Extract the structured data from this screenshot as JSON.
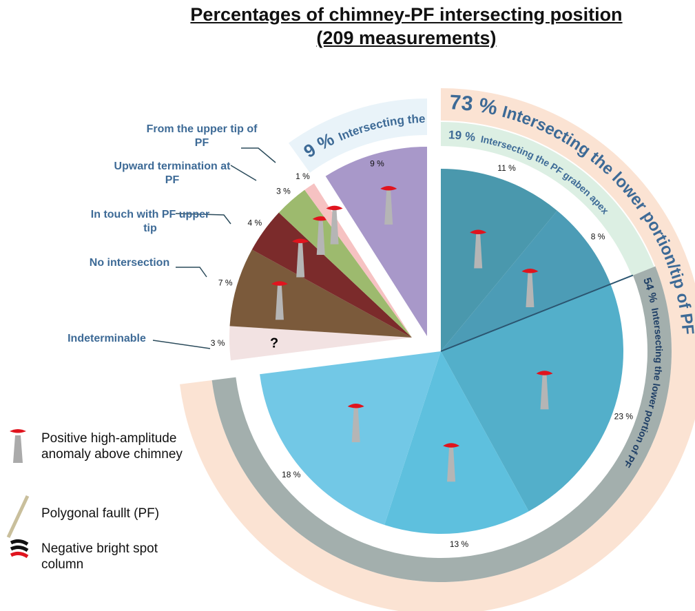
{
  "chart_data": {
    "type": "pie",
    "title": "Percentages of chimney-PF intersecting position",
    "subtitle": "(209 measurements)",
    "categories": [
      null,
      null,
      null,
      null,
      null,
      "Indeterminable",
      "No intersection",
      "In touch with PF upper tip",
      "Upward termination at PF",
      "From the upper tip of PF",
      null
    ],
    "values": [
      11,
      8,
      23,
      13,
      18,
      3,
      7,
      4,
      3,
      1,
      9
    ],
    "value_labels": [
      "11 %",
      "8 %",
      "23 %",
      "13 %",
      "18 %",
      "3 %",
      "7 %",
      "4 %",
      "3 %",
      "1 %",
      "9 %"
    ],
    "colors": [
      "#4a98ad",
      "#4c9cb6",
      "#53afca",
      "#5ec0de",
      "#72c8e6",
      "#f2e2e2",
      "#7b5a3b",
      "#7b2b2b",
      "#9dba6e",
      "#f6c2c2",
      "#a898c9"
    ],
    "groups": [
      {
        "value": 73,
        "value_label": "73 %",
        "label": "Intersecting the lower portion/tip of PF",
        "color": "#fbe3d3"
      },
      {
        "value": 19,
        "value_label": "19 %",
        "label": "Intersecting the PF graben apex",
        "color": "#dcefe3"
      },
      {
        "value": 54,
        "value_label": "54 %",
        "label": "Intersecting the lower portion of PF",
        "color": "#a3afad"
      },
      {
        "value": 9,
        "value_label": "9 %",
        "label": "Intersecting the middle portion of PF",
        "color": "#e9f3f9"
      }
    ],
    "legend": [
      "Positive high-amplitude anomaly above chimney",
      "Polygonal faullt (PF)",
      "Negative bright spot column"
    ]
  }
}
